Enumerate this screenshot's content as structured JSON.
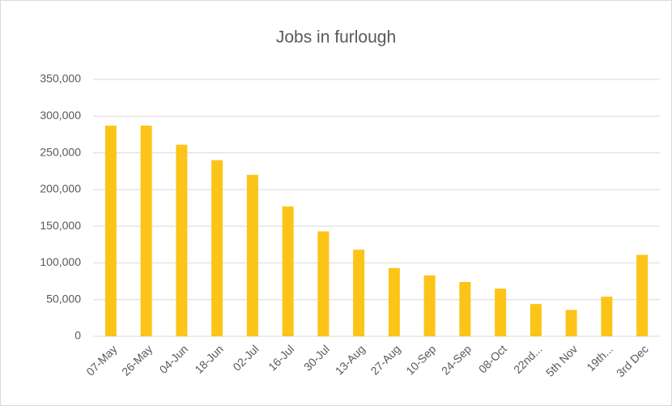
{
  "chart_data": {
    "type": "bar",
    "title": "Jobs in furlough",
    "categories": [
      "07-May",
      "26-May",
      "04-Jun",
      "18-Jun",
      "02-Jul",
      "16-Jul",
      "30-Jul",
      "13-Aug",
      "27-Aug",
      "10-Sep",
      "24-Sep",
      "08-Oct",
      "22nd...",
      "5th Nov",
      "19th...",
      "3rd Dec"
    ],
    "values": [
      287000,
      287000,
      261000,
      240000,
      220000,
      177000,
      143000,
      118000,
      93000,
      83000,
      74000,
      65000,
      44000,
      36000,
      54000,
      111000
    ],
    "color": "#fcc419",
    "ylim": [
      0,
      350000
    ],
    "yticks": [
      0,
      {
        "value": 50000,
        "label": "50,000"
      },
      {
        "value": 100000,
        "label": "100,000"
      },
      {
        "value": 150000,
        "label": "150,000"
      },
      {
        "value": 200000,
        "label": "200,000"
      },
      {
        "value": 250000,
        "label": "250,000"
      },
      {
        "value": 300000,
        "label": "300,000"
      },
      {
        "value": 350000,
        "label": "350,000"
      }
    ],
    "grid": true
  }
}
